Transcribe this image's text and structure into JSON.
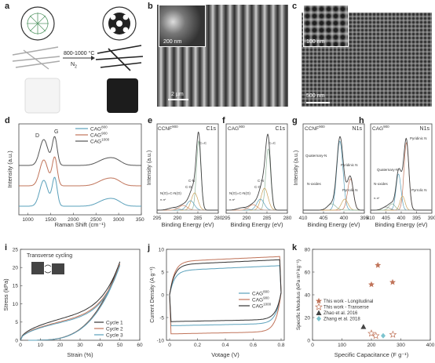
{
  "panels": {
    "a": {
      "label": "a",
      "condition_temp": "800-1000 °C",
      "condition_gas": "N",
      "condition_gas_sub": "2"
    },
    "b": {
      "label": "b",
      "inset_scale": "200 nm",
      "scale": "2 µm"
    },
    "c": {
      "label": "c",
      "inset_scale": "100 nm",
      "scale": "500 nm"
    }
  },
  "chart_data": [
    {
      "id": "d",
      "label": "d",
      "type": "line",
      "xlabel": "Raman Shift (cm⁻¹)",
      "ylabel": "Intensity (a.u.)",
      "xlim": [
        800,
        3500
      ],
      "xticks": [
        1000,
        1500,
        2000,
        2500,
        3000,
        3500
      ],
      "peaks": [
        {
          "name": "D",
          "x": 1350
        },
        {
          "name": "G",
          "x": 1590
        }
      ],
      "series": [
        {
          "name": "CAG",
          "sup": "800",
          "color": "#5aa0bb",
          "offset": 0
        },
        {
          "name": "CAG",
          "sup": "900",
          "color": "#c0745a",
          "offset": 0.22
        },
        {
          "name": "CAG",
          "sup": "1000",
          "color": "#555555",
          "offset": 0.44
        }
      ]
    },
    {
      "id": "e",
      "label": "e",
      "type": "line",
      "title": "CCNF",
      "title_sup": "900",
      "tag": "C1s",
      "xlabel": "Binding Energy (eV)",
      "ylabel": "Intensity (a.u.)",
      "xlim": [
        295,
        280
      ],
      "xticks": [
        295,
        290,
        285,
        280
      ],
      "annotations": [
        "C=C",
        "C-N",
        "C-O",
        "N(O)=C-N(O)",
        "π-π*"
      ]
    },
    {
      "id": "f",
      "label": "f",
      "type": "line",
      "title": "CAG",
      "title_sup": "900",
      "tag": "C1s",
      "xlabel": "Binding Energy (eV)",
      "xlim": [
        295,
        280
      ],
      "xticks": [
        295,
        290,
        285,
        280
      ],
      "annotations": [
        "C=C",
        "C-N",
        "C-O",
        "N(O)=C-N(O)",
        "π-π*"
      ]
    },
    {
      "id": "g",
      "label": "g",
      "type": "line",
      "title": "CCNF",
      "title_sup": "900",
      "tag": "N1s",
      "xlabel": "Binding Energy (eV)",
      "ylabel": "Intensity (a.u.)",
      "xlim": [
        410,
        395
      ],
      "xticks": [
        410,
        405,
        400,
        395
      ],
      "annotations": [
        "Quaternary-N",
        "Pyridinic N",
        "Pyrrolic N",
        "N-oxides"
      ]
    },
    {
      "id": "h",
      "label": "h",
      "type": "line",
      "title": "CAG",
      "title_sup": "900",
      "tag": "N1s",
      "xlabel": "Binding Energy (eV)",
      "xlim": [
        410,
        390
      ],
      "xticks": [
        410,
        405,
        400,
        395,
        390
      ],
      "annotations": [
        "Pyridinic N",
        "Quaternary-N",
        "Pyrrolic N",
        "N-oxides",
        "π-π*"
      ]
    },
    {
      "id": "i",
      "label": "i",
      "type": "line",
      "xlabel": "Strain (%)",
      "ylabel": "Stress (kPa)",
      "xlim": [
        0,
        60
      ],
      "ylim": [
        0,
        25
      ],
      "xticks": [
        0,
        10,
        20,
        30,
        40,
        50,
        60
      ],
      "yticks": [
        0,
        5,
        10,
        15,
        20,
        25
      ],
      "inset_title": "Transverse cycling",
      "series": [
        {
          "name": "Cycle 1",
          "color": "#333333"
        },
        {
          "name": "Cycle 2",
          "color": "#c0745a"
        },
        {
          "name": "Cycle 3",
          "color": "#5aa0bb"
        }
      ]
    },
    {
      "id": "j",
      "label": "j",
      "type": "line",
      "xlabel": "Votage (V)",
      "ylabel": "Current Density (A g⁻¹)",
      "xlim": [
        0,
        0.8
      ],
      "ylim": [
        -10,
        10
      ],
      "xticks": [
        0.0,
        0.2,
        0.4,
        0.6,
        0.8
      ],
      "yticks": [
        -10,
        -5,
        0,
        5,
        10
      ],
      "series": [
        {
          "name": "CAG",
          "sup": "800",
          "color": "#5aa0bb"
        },
        {
          "name": "CAG",
          "sup": "900",
          "color": "#c0745a"
        },
        {
          "name": "CAG",
          "sup": "1000",
          "color": "#333333"
        }
      ]
    },
    {
      "id": "k",
      "label": "k",
      "type": "scatter",
      "xlabel": "Specific Capacitance (F g⁻¹)",
      "ylabel": "Specific Modulus (kPa m³ kg⁻¹)",
      "xlim": [
        0,
        400
      ],
      "ylim": [
        0,
        80
      ],
      "xticks": [
        0,
        100,
        200,
        300,
        400
      ],
      "yticks": [
        0,
        20,
        40,
        60,
        80
      ],
      "series": [
        {
          "name": "This work - Longitudinal",
          "marker": "star",
          "color": "#c0745a",
          "points": [
            [
              222,
              66
            ],
            [
              272,
              51
            ],
            [
              200,
              49
            ]
          ]
        },
        {
          "name": "This work - Transerse",
          "marker": "star-open",
          "color": "#c0745a",
          "points": [
            [
              200,
              6
            ],
            [
              215,
              4
            ],
            [
              273,
              5
            ]
          ]
        },
        {
          "name": "Zhao et al. 2016",
          "marker": "triangle",
          "color": "#444444",
          "points": [
            [
              173,
              12
            ]
          ]
        },
        {
          "name": "Zhang et al. 2018",
          "marker": "diamond",
          "color": "#7dc4cf",
          "points": [
            [
              240,
              4
            ]
          ]
        }
      ]
    }
  ]
}
